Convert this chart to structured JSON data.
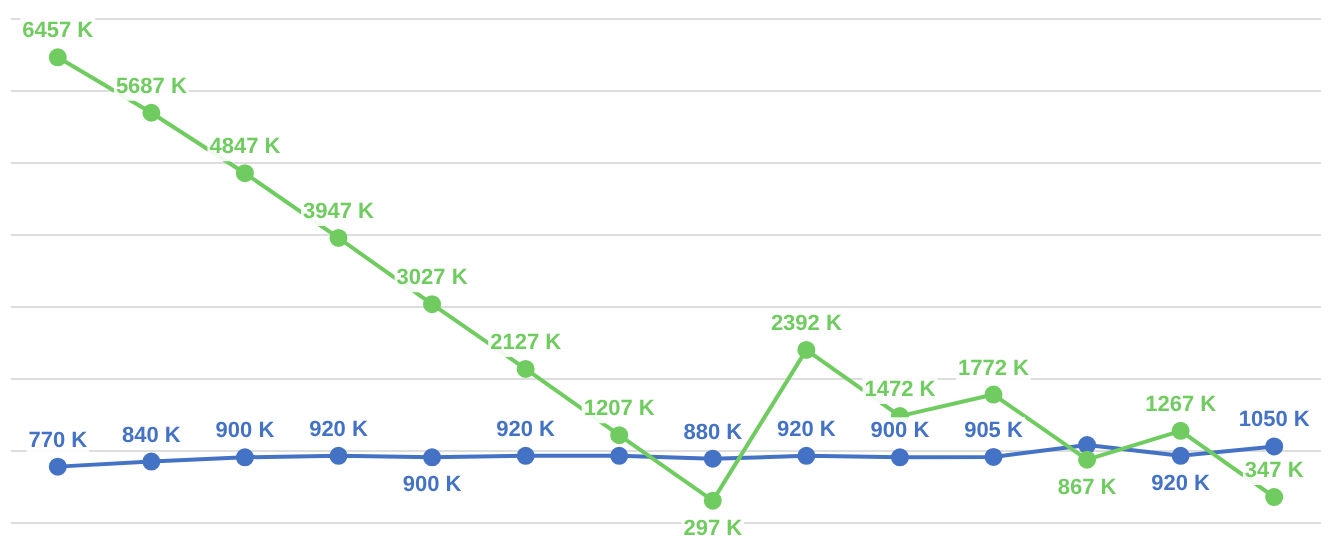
{
  "chart_data": {
    "type": "line",
    "categories": [
      null,
      null,
      null,
      null,
      null,
      null,
      null,
      null,
      null,
      null,
      null,
      null,
      null,
      null
    ],
    "series": [
      {
        "color": "#4472c4",
        "values": [
          770,
          840,
          900,
          920,
          900,
          920,
          920,
          880,
          920,
          900,
          905,
          1070,
          920,
          1050
        ],
        "value_labels": [
          "770 K",
          "840 K",
          "900 K",
          "920 K",
          "900 K",
          "920 K",
          null,
          "880 K",
          "920 K",
          "900 K",
          "905 K",
          null,
          "920 K",
          "1050 K"
        ]
      },
      {
        "color": "#70cc60",
        "values": [
          6457,
          5687,
          4847,
          3947,
          3027,
          2127,
          1207,
          297,
          2392,
          1472,
          1772,
          867,
          1267,
          347
        ],
        "value_labels": [
          "6457 K",
          "5687 K",
          "4847 K",
          "3947 K",
          "3027 K",
          "2127 K",
          "1207 K",
          "297 K",
          "2392 K",
          "1472 K",
          "1772 K",
          "867 K",
          "1267 K",
          "347 K"
        ]
      }
    ],
    "grid": "y",
    "marker": "circle",
    "line_style": "solid",
    "tick_labels": false
  }
}
